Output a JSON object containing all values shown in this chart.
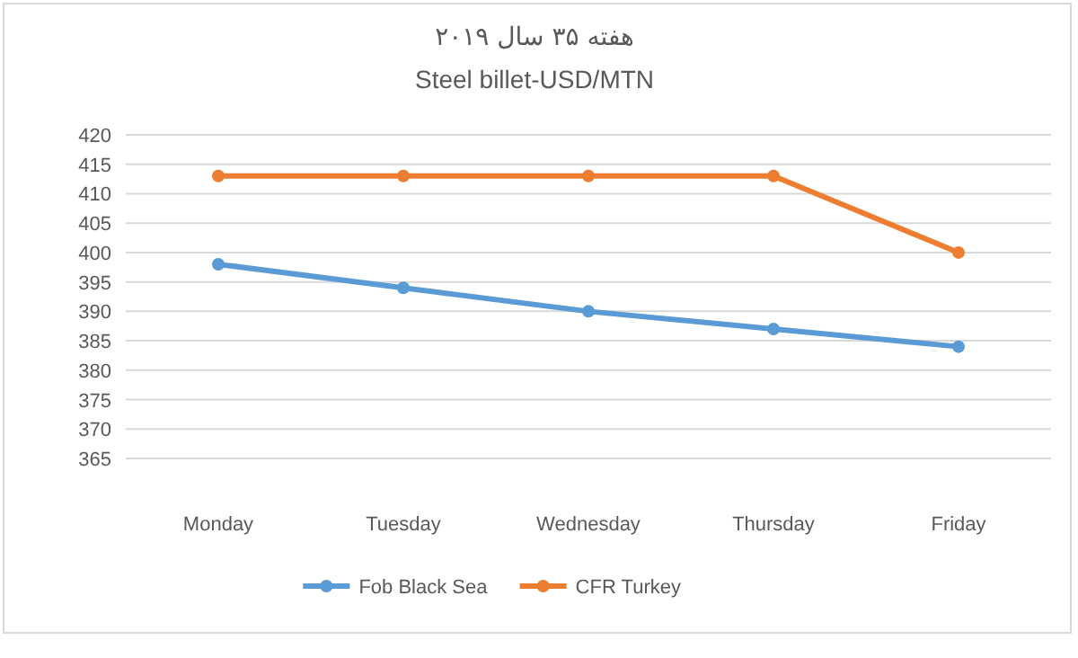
{
  "chart_data": {
    "type": "line",
    "title": "هفته ۳۵ سال ۲۰۱۹",
    "subtitle": "Steel billet-USD/MTN",
    "categories": [
      "Monday",
      "Tuesday",
      "Wednesday",
      "Thursday",
      "Friday"
    ],
    "series": [
      {
        "name": "Fob Black Sea",
        "color": "#5b9bd5",
        "values": [
          398,
          394,
          390,
          387,
          384
        ]
      },
      {
        "name": "CFR Turkey",
        "color": "#ed7d31",
        "values": [
          413,
          413,
          413,
          413,
          400
        ]
      }
    ],
    "ylim": [
      365,
      420
    ],
    "yticks": [
      365,
      370,
      375,
      380,
      385,
      390,
      395,
      400,
      405,
      410,
      415,
      420
    ],
    "grid": "y",
    "legend": "bottom",
    "marker": "circle",
    "line_style": "solid"
  }
}
